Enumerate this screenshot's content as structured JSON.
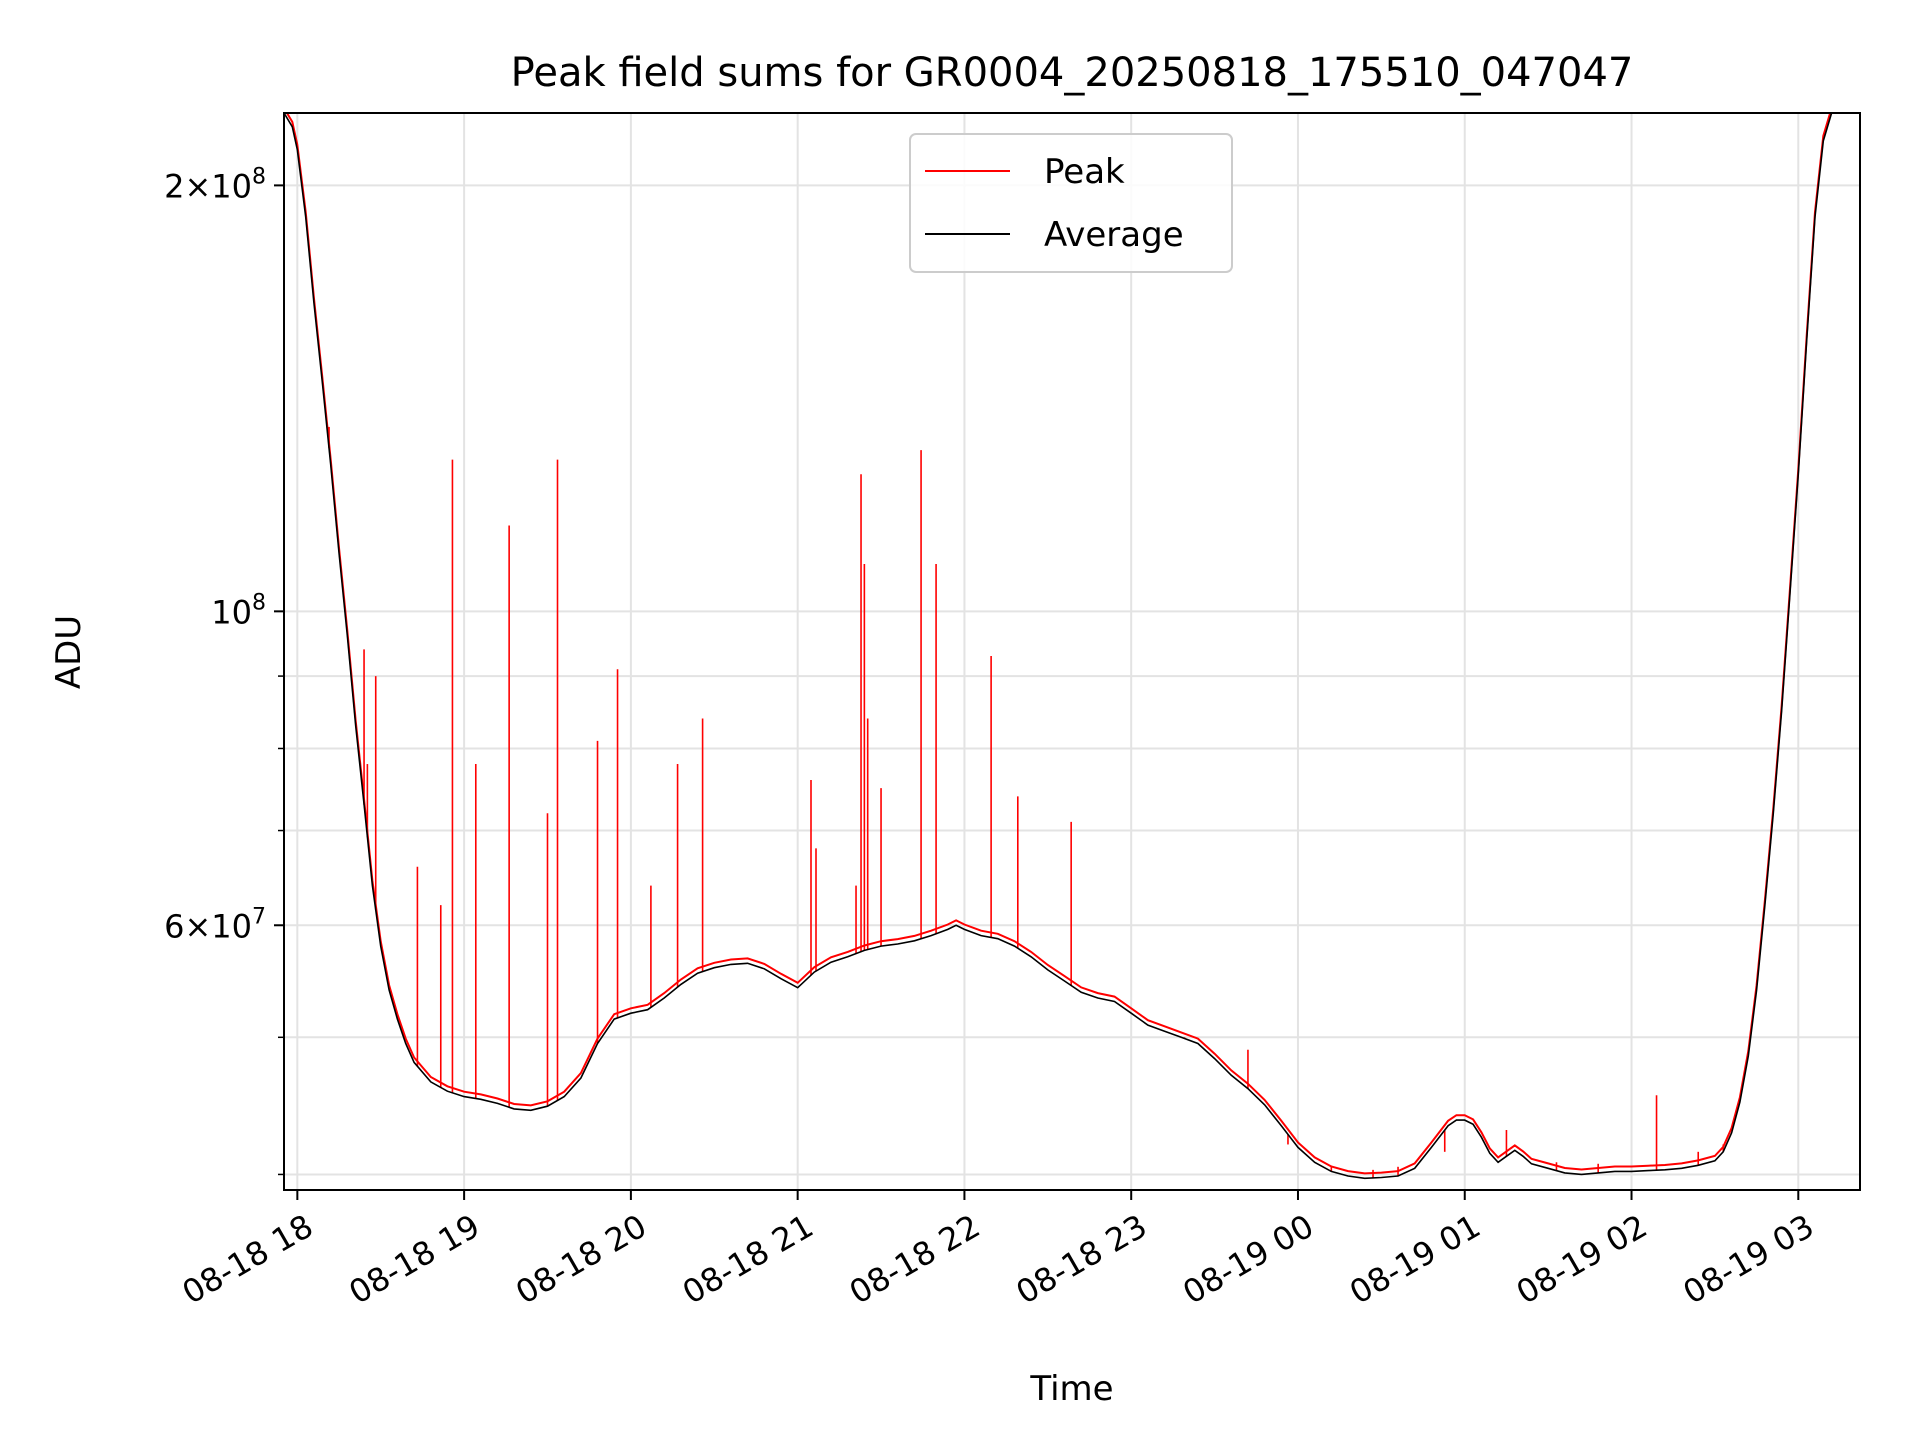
{
  "chart_data": {
    "type": "line",
    "title": "Peak field sums for GR0004_20250818_175510_047047",
    "xlabel": "Time",
    "ylabel": "ADU",
    "x_ticks": [
      "08-18 18",
      "08-18 19",
      "08-18 20",
      "08-18 21",
      "08-18 22",
      "08-18 23",
      "08-19 00",
      "08-19 01",
      "08-19 02",
      "08-19 03"
    ],
    "x_tick_hours": [
      18,
      19,
      20,
      21,
      22,
      23,
      24,
      25,
      26,
      27
    ],
    "xlim_hours": [
      17.92,
      27.37
    ],
    "y_scale": "log",
    "ylim": [
      39000000,
      225000000
    ],
    "y_major_ticks": [
      {
        "value": 200000000,
        "mant": "2",
        "exp": "8"
      },
      {
        "value": 100000000,
        "mant": "",
        "exp": "8"
      },
      {
        "value": 60000000,
        "mant": "6",
        "exp": "7"
      }
    ],
    "y_minor_ticks": [
      40000000,
      50000000,
      70000000,
      80000000,
      90000000
    ],
    "grid": true,
    "legend_position": "upper-center",
    "series": [
      {
        "name": "Peak",
        "color": "#ff0000",
        "spikes": [
          {
            "t": 18.19,
            "y": 135000000
          },
          {
            "t": 18.4,
            "y": 94000000
          },
          {
            "t": 18.42,
            "y": 78000000
          },
          {
            "t": 18.47,
            "y": 90000000
          },
          {
            "t": 18.5,
            "y": 58000000
          },
          {
            "t": 18.72,
            "y": 66000000
          },
          {
            "t": 18.86,
            "y": 62000000
          },
          {
            "t": 18.93,
            "y": 128000000
          },
          {
            "t": 19.07,
            "y": 78000000
          },
          {
            "t": 19.27,
            "y": 115000000
          },
          {
            "t": 19.5,
            "y": 72000000
          },
          {
            "t": 19.56,
            "y": 128000000
          },
          {
            "t": 19.8,
            "y": 81000000
          },
          {
            "t": 19.92,
            "y": 91000000
          },
          {
            "t": 20.12,
            "y": 64000000
          },
          {
            "t": 20.28,
            "y": 78000000
          },
          {
            "t": 20.43,
            "y": 84000000
          },
          {
            "t": 21.08,
            "y": 76000000
          },
          {
            "t": 21.11,
            "y": 68000000
          },
          {
            "t": 21.35,
            "y": 64000000
          },
          {
            "t": 21.38,
            "y": 125000000
          },
          {
            "t": 21.4,
            "y": 108000000
          },
          {
            "t": 21.42,
            "y": 84000000
          },
          {
            "t": 21.5,
            "y": 75000000
          },
          {
            "t": 21.74,
            "y": 130000000
          },
          {
            "t": 21.83,
            "y": 108000000
          },
          {
            "t": 22.16,
            "y": 93000000
          },
          {
            "t": 22.32,
            "y": 74000000
          },
          {
            "t": 22.64,
            "y": 71000000
          },
          {
            "t": 23.32,
            "y": 50000000
          },
          {
            "t": 23.7,
            "y": 49000000
          },
          {
            "t": 23.94,
            "y": 42000000
          },
          {
            "t": 24.2,
            "y": 40500000
          },
          {
            "t": 24.45,
            "y": 40300000
          },
          {
            "t": 24.6,
            "y": 40500000
          },
          {
            "t": 24.88,
            "y": 41500000
          },
          {
            "t": 25.25,
            "y": 43000000
          },
          {
            "t": 25.55,
            "y": 40800000
          },
          {
            "t": 25.8,
            "y": 40700000
          },
          {
            "t": 26.15,
            "y": 45500000
          },
          {
            "t": 26.4,
            "y": 41500000
          },
          {
            "t": 26.55,
            "y": 42000000
          }
        ]
      },
      {
        "name": "Average",
        "color": "#000000",
        "points": [
          [
            17.92,
            225000000
          ],
          [
            17.97,
            220000000
          ],
          [
            18.0,
            212000000
          ],
          [
            18.05,
            190000000
          ],
          [
            18.1,
            165000000
          ],
          [
            18.15,
            145000000
          ],
          [
            18.2,
            127000000
          ],
          [
            18.25,
            110000000
          ],
          [
            18.3,
            96000000
          ],
          [
            18.35,
            83000000
          ],
          [
            18.4,
            73000000
          ],
          [
            18.45,
            64000000
          ],
          [
            18.5,
            58000000
          ],
          [
            18.55,
            54000000
          ],
          [
            18.6,
            51500000
          ],
          [
            18.65,
            49500000
          ],
          [
            18.7,
            48000000
          ],
          [
            18.8,
            46500000
          ],
          [
            18.9,
            45800000
          ],
          [
            19.0,
            45400000
          ],
          [
            19.1,
            45200000
          ],
          [
            19.2,
            44900000
          ],
          [
            19.3,
            44500000
          ],
          [
            19.4,
            44400000
          ],
          [
            19.5,
            44700000
          ],
          [
            19.6,
            45400000
          ],
          [
            19.7,
            46800000
          ],
          [
            19.8,
            49500000
          ],
          [
            19.9,
            51500000
          ],
          [
            20.0,
            52000000
          ],
          [
            20.1,
            52300000
          ],
          [
            20.2,
            53300000
          ],
          [
            20.3,
            54500000
          ],
          [
            20.4,
            55500000
          ],
          [
            20.5,
            56000000
          ],
          [
            20.6,
            56300000
          ],
          [
            20.7,
            56400000
          ],
          [
            20.8,
            55900000
          ],
          [
            20.9,
            55000000
          ],
          [
            21.0,
            54200000
          ],
          [
            21.1,
            55600000
          ],
          [
            21.2,
            56500000
          ],
          [
            21.3,
            57000000
          ],
          [
            21.4,
            57600000
          ],
          [
            21.5,
            58000000
          ],
          [
            21.6,
            58200000
          ],
          [
            21.7,
            58500000
          ],
          [
            21.8,
            59000000
          ],
          [
            21.9,
            59600000
          ],
          [
            21.95,
            60000000
          ],
          [
            22.0,
            59600000
          ],
          [
            22.1,
            59000000
          ],
          [
            22.2,
            58700000
          ],
          [
            22.3,
            58000000
          ],
          [
            22.4,
            57000000
          ],
          [
            22.5,
            55800000
          ],
          [
            22.6,
            54800000
          ],
          [
            22.7,
            53800000
          ],
          [
            22.8,
            53300000
          ],
          [
            22.9,
            53000000
          ],
          [
            23.0,
            52000000
          ],
          [
            23.1,
            51000000
          ],
          [
            23.2,
            50500000
          ],
          [
            23.3,
            50000000
          ],
          [
            23.4,
            49500000
          ],
          [
            23.5,
            48300000
          ],
          [
            23.6,
            47000000
          ],
          [
            23.7,
            46000000
          ],
          [
            23.8,
            44800000
          ],
          [
            23.9,
            43300000
          ],
          [
            24.0,
            41800000
          ],
          [
            24.1,
            40800000
          ],
          [
            24.2,
            40200000
          ],
          [
            24.3,
            39900000
          ],
          [
            24.4,
            39750000
          ],
          [
            24.5,
            39800000
          ],
          [
            24.6,
            39900000
          ],
          [
            24.7,
            40400000
          ],
          [
            24.8,
            41800000
          ],
          [
            24.9,
            43300000
          ],
          [
            24.95,
            43700000
          ],
          [
            25.0,
            43700000
          ],
          [
            25.05,
            43400000
          ],
          [
            25.1,
            42500000
          ],
          [
            25.15,
            41400000
          ],
          [
            25.2,
            40800000
          ],
          [
            25.25,
            41200000
          ],
          [
            25.3,
            41600000
          ],
          [
            25.35,
            41200000
          ],
          [
            25.4,
            40700000
          ],
          [
            25.5,
            40400000
          ],
          [
            25.6,
            40100000
          ],
          [
            25.7,
            40000000
          ],
          [
            25.8,
            40100000
          ],
          [
            25.9,
            40200000
          ],
          [
            26.0,
            40200000
          ],
          [
            26.1,
            40250000
          ],
          [
            26.2,
            40300000
          ],
          [
            26.3,
            40400000
          ],
          [
            26.4,
            40600000
          ],
          [
            26.5,
            40900000
          ],
          [
            26.55,
            41500000
          ],
          [
            26.6,
            42800000
          ],
          [
            26.65,
            45000000
          ],
          [
            26.7,
            48500000
          ],
          [
            26.75,
            54000000
          ],
          [
            26.8,
            62000000
          ],
          [
            26.85,
            72000000
          ],
          [
            26.9,
            85000000
          ],
          [
            26.95,
            103000000
          ],
          [
            27.0,
            125000000
          ],
          [
            27.05,
            155000000
          ],
          [
            27.1,
            190000000
          ],
          [
            27.15,
            215000000
          ],
          [
            27.2,
            225000000
          ],
          [
            27.37,
            225000000
          ]
        ]
      }
    ]
  }
}
